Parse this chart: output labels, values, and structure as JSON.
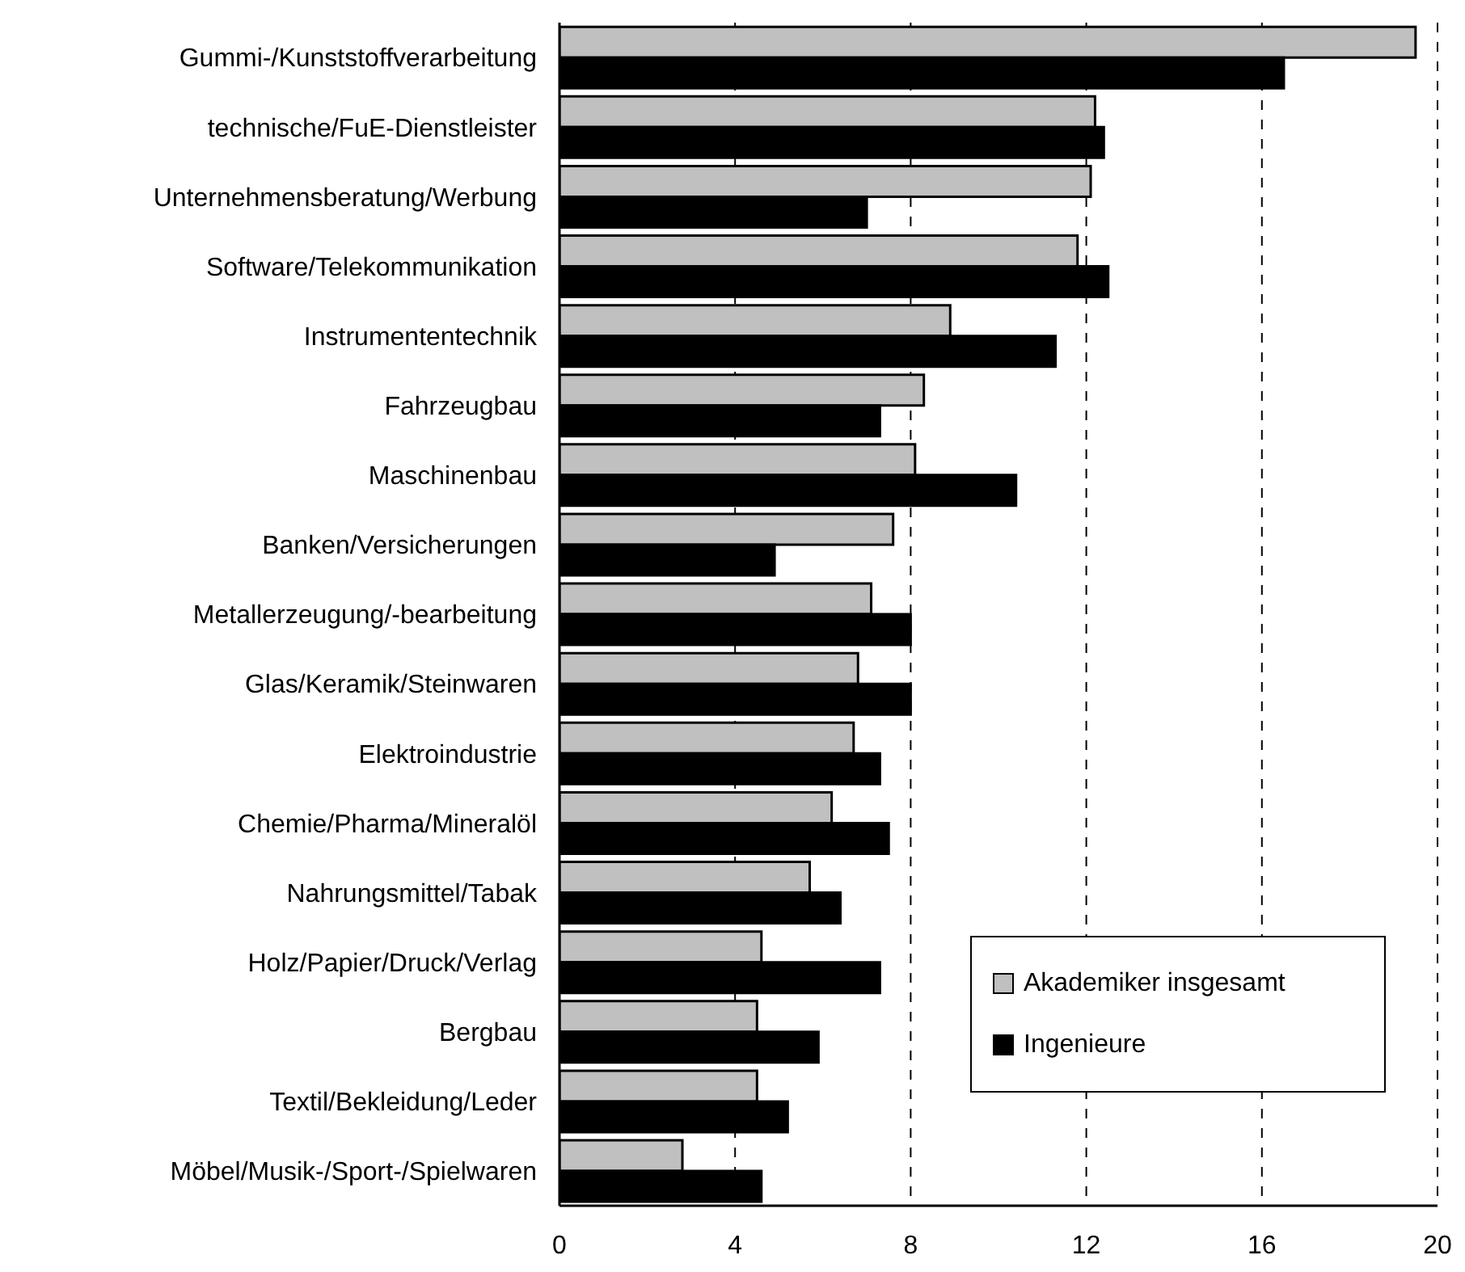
{
  "chart_data": {
    "type": "bar",
    "orientation": "horizontal",
    "categories": [
      "Gummi-/Kunststoffverarbeitung",
      "technische/FuE-Dienstleister",
      "Unternehmensberatung/Werbung",
      "Software/Telekommunikation",
      "Instrumententechnik",
      "Fahrzeugbau",
      "Maschinenbau",
      "Banken/Versicherungen",
      "Metallerzeugung/-bearbeitung",
      "Glas/Keramik/Steinwaren",
      "Elektroindustrie",
      "Chemie/Pharma/Mineralöl",
      "Nahrungsmittel/Tabak",
      "Holz/Papier/Druck/Verlag",
      "Bergbau",
      "Textil/Bekleidung/Leder",
      "Möbel/Musik-/Sport-/Spielwaren"
    ],
    "series": [
      {
        "name": "Akademiker insgesamt",
        "color": "#c0c0c0",
        "values": [
          19.5,
          12.2,
          12.1,
          11.8,
          8.9,
          8.3,
          8.1,
          7.6,
          7.1,
          6.8,
          6.7,
          6.2,
          5.7,
          4.6,
          4.5,
          4.5,
          2.8
        ]
      },
      {
        "name": "Ingenieure",
        "color": "#000000",
        "values": [
          16.5,
          12.4,
          7.0,
          12.5,
          11.3,
          7.3,
          10.4,
          4.9,
          8.0,
          8.0,
          7.3,
          7.5,
          6.4,
          7.3,
          5.9,
          5.2,
          4.6
        ]
      }
    ],
    "xlim": [
      0,
      20
    ],
    "xticks": [
      0,
      4,
      8,
      12,
      16,
      20
    ],
    "grid": "x",
    "legend": "bottom right"
  }
}
